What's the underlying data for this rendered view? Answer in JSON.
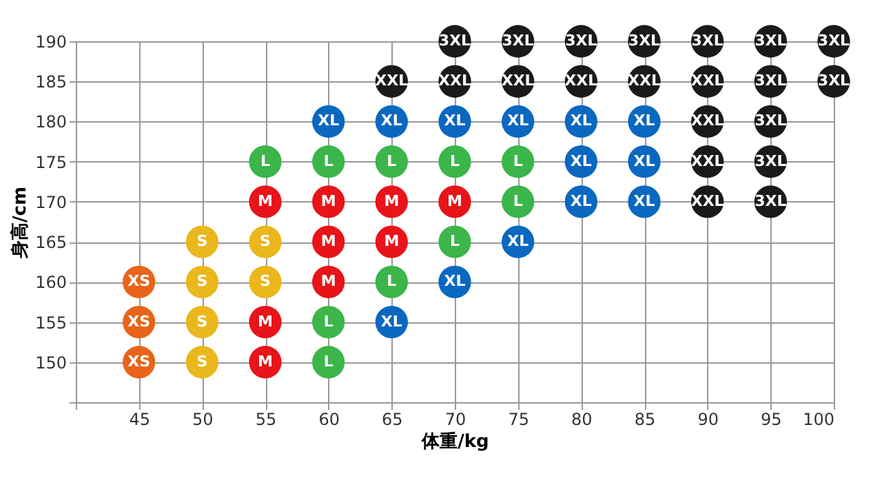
{
  "chart_data": {
    "type": "scatter",
    "xlabel": "体重/kg",
    "ylabel": "身高/cm",
    "xlim": [
      40,
      100
    ],
    "ylim": [
      145,
      190
    ],
    "xticks": [
      {
        "value": 40,
        "label": null
      },
      45,
      50,
      55,
      60,
      65,
      70,
      75,
      80,
      85,
      90,
      95,
      100
    ],
    "yticks": [
      {
        "value": 145,
        "label": null
      },
      150,
      155,
      160,
      165,
      170,
      175,
      180,
      185,
      190
    ],
    "grid": true,
    "legend": false,
    "marker": "circle",
    "series": [
      {
        "name": "XS",
        "color": "#e8641a",
        "x": [
          45,
          45,
          45
        ],
        "values": [
          150,
          155,
          160
        ]
      },
      {
        "name": "S",
        "color": "#eab71c",
        "x": [
          50,
          50,
          50,
          50,
          55,
          55
        ],
        "values": [
          150,
          155,
          160,
          165,
          160,
          165
        ]
      },
      {
        "name": "M",
        "color": "#e8141a",
        "x": [
          55,
          55,
          55,
          60,
          60,
          60,
          65,
          65,
          70
        ],
        "values": [
          150,
          155,
          170,
          160,
          165,
          170,
          165,
          170,
          170
        ]
      },
      {
        "name": "L",
        "color": "#3cb54a",
        "x": [
          55,
          60,
          60,
          60,
          65,
          65,
          70,
          70,
          75,
          75
        ],
        "values": [
          175,
          150,
          155,
          175,
          160,
          175,
          165,
          175,
          170,
          175
        ]
      },
      {
        "name": "XL",
        "color": "#0b68c0",
        "x": [
          60,
          65,
          65,
          70,
          70,
          75,
          75,
          80,
          80,
          80,
          85,
          85,
          85
        ],
        "values": [
          180,
          155,
          180,
          160,
          180,
          165,
          180,
          170,
          175,
          180,
          170,
          175,
          180
        ]
      },
      {
        "name": "XXL",
        "color": "#1a1a1a",
        "x": [
          65,
          70,
          75,
          80,
          85,
          90,
          90,
          90,
          90
        ],
        "values": [
          185,
          185,
          185,
          185,
          185,
          185,
          180,
          175,
          170
        ]
      },
      {
        "name": "3XL",
        "color": "#1a1a1a",
        "x": [
          70,
          75,
          80,
          85,
          90,
          95,
          100,
          95,
          100,
          95,
          95,
          95
        ],
        "values": [
          190,
          190,
          190,
          190,
          190,
          190,
          190,
          185,
          185,
          180,
          175,
          170
        ]
      }
    ]
  }
}
